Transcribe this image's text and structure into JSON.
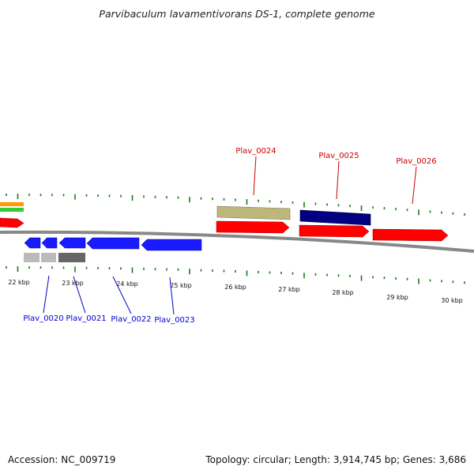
{
  "title": "Parvibaculum lavamentivorans DS-1, complete genome",
  "footer": {
    "accession": "Accession: NC_009719",
    "summary": "Topology: circular; Length: 3,914,745 bp; Genes: 3,686"
  },
  "colors": {
    "forward_label": "#cc0000",
    "reverse_label": "#0000cc",
    "tick": "#1a7a1a",
    "backbone": "#888888",
    "red_gene": "#ff0000",
    "blue_gene": "#1a1aff",
    "khaki_gene": "#bdb77b",
    "navy_gene": "#000080",
    "orange_gene": "#ff9900",
    "green_gene": "#33cc33",
    "light_gray_gene": "#bbbbbb",
    "dark_gray_gene": "#666666"
  },
  "kbp_labels": [
    "22 kbp",
    "23 kbp",
    "24 kbp",
    "25 kbp",
    "26 kbp",
    "27 kbp",
    "28 kbp",
    "29 kbp",
    "30 kbp"
  ],
  "forward_genes": [
    {
      "name": "Plav_0024"
    },
    {
      "name": "Plav_0025"
    },
    {
      "name": "Plav_0026"
    }
  ],
  "reverse_genes": [
    {
      "name": "Plav_0020"
    },
    {
      "name": "Plav_0021"
    },
    {
      "name": "Plav_0022"
    },
    {
      "name": "Plav_0023"
    }
  ]
}
